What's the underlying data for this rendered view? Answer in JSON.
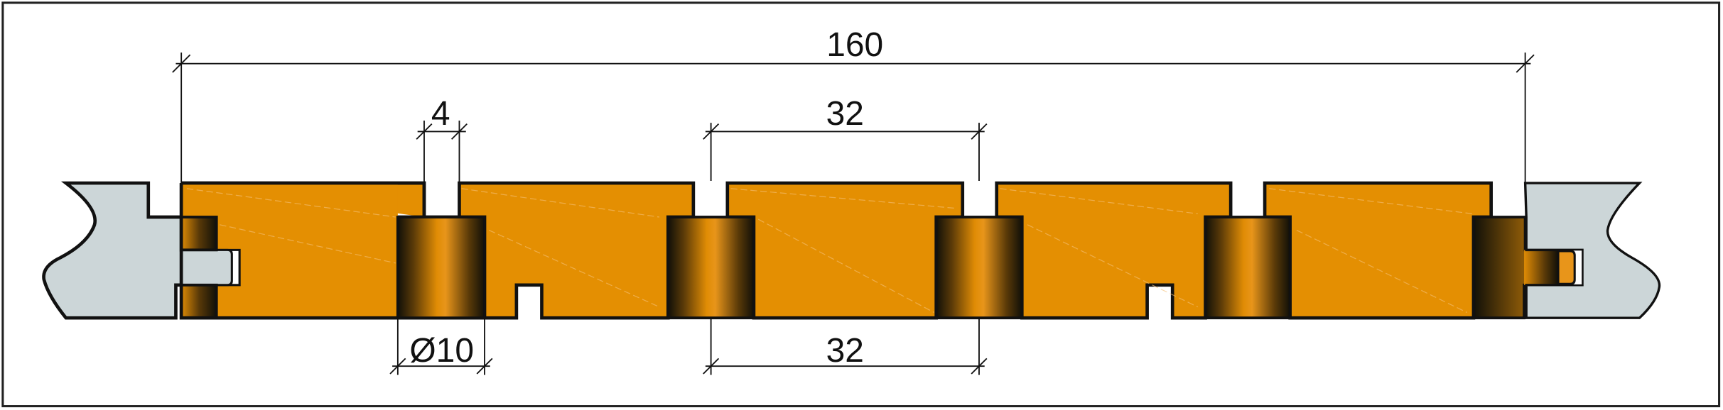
{
  "dimensions": {
    "overall_width": "160",
    "gap_width": "4",
    "dowel_spacing_top": "32",
    "dowel_diameter": "Ø10",
    "dowel_spacing_bottom": "32"
  },
  "colors": {
    "wood": "#e48f02",
    "dowel_dark": "#111008",
    "metal_profile": "#ccd6d8",
    "outline": "#111111",
    "frame": "#222222"
  }
}
